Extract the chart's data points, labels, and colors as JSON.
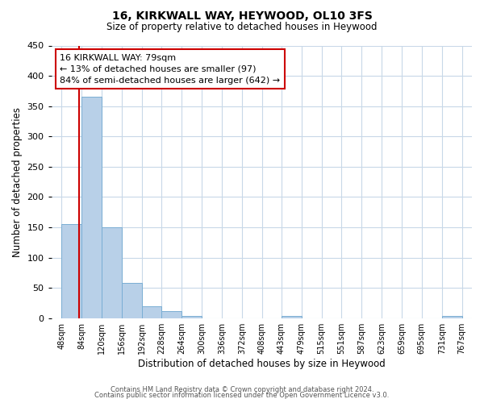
{
  "title": "16, KIRKWALL WAY, HEYWOOD, OL10 3FS",
  "subtitle": "Size of property relative to detached houses in Heywood",
  "xlabel": "Distribution of detached houses by size in Heywood",
  "ylabel": "Number of detached properties",
  "bin_edges": [
    48,
    84,
    120,
    156,
    192,
    228,
    264,
    300,
    336,
    372,
    408,
    443,
    479,
    515,
    551,
    587,
    623,
    659,
    695,
    731,
    767
  ],
  "bin_labels": [
    "48sqm",
    "84sqm",
    "120sqm",
    "156sqm",
    "192sqm",
    "228sqm",
    "264sqm",
    "300sqm",
    "336sqm",
    "372sqm",
    "408sqm",
    "443sqm",
    "479sqm",
    "515sqm",
    "551sqm",
    "587sqm",
    "623sqm",
    "659sqm",
    "695sqm",
    "731sqm",
    "767sqm"
  ],
  "counts": [
    155,
    365,
    150,
    58,
    20,
    12,
    4,
    0,
    0,
    0,
    0,
    3,
    0,
    0,
    0,
    0,
    0,
    0,
    0,
    4
  ],
  "bar_color": "#b8d0e8",
  "bar_edge_color": "#7aaed4",
  "property_line_x": 79,
  "property_line_color": "#cc0000",
  "ylim": [
    0,
    450
  ],
  "yticks": [
    0,
    50,
    100,
    150,
    200,
    250,
    300,
    350,
    400,
    450
  ],
  "annotation_text": "16 KIRKWALL WAY: 79sqm\n← 13% of detached houses are smaller (97)\n84% of semi-detached houses are larger (642) →",
  "annotation_box_color": "#ffffff",
  "annotation_box_edge": "#cc0000",
  "footer_line1": "Contains HM Land Registry data © Crown copyright and database right 2024.",
  "footer_line2": "Contains public sector information licensed under the Open Government Licence v3.0.",
  "background_color": "#ffffff",
  "grid_color": "#c8d8e8",
  "title_fontsize": 10,
  "subtitle_fontsize": 8.5
}
